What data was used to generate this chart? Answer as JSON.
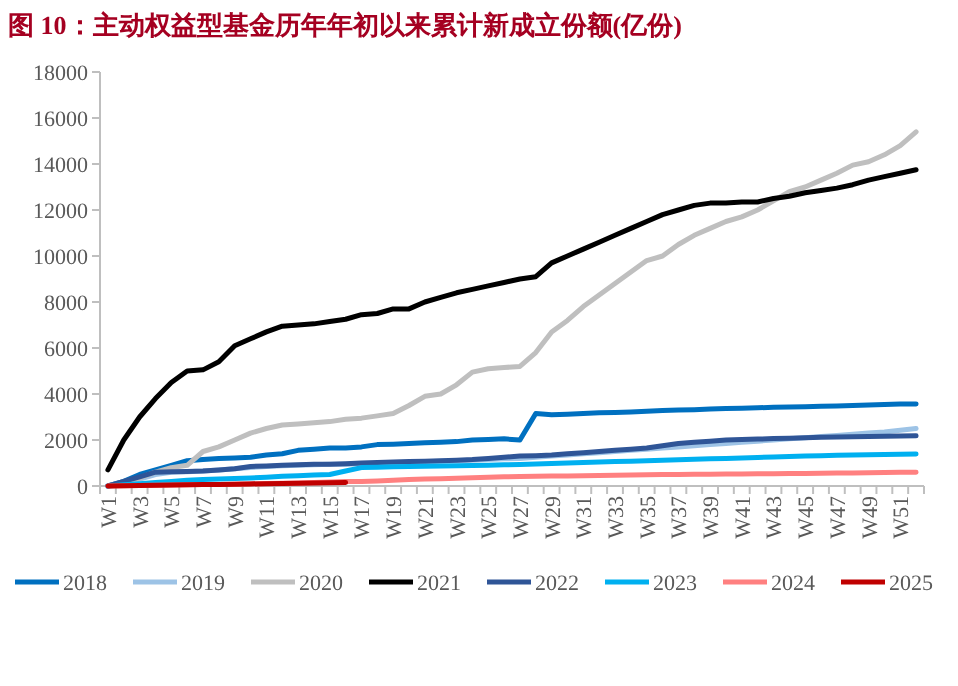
{
  "chart_data": {
    "type": "line",
    "title": "图 10：主动权益型基金历年年初以来累计新成立份额(亿份)",
    "categories": [
      "W1",
      null,
      "W3",
      null,
      "W5",
      null,
      "W7",
      null,
      "W9",
      null,
      "W11",
      null,
      "W13",
      null,
      "W15",
      null,
      "W17",
      null,
      "W19",
      null,
      "W21",
      null,
      "W23",
      null,
      "W25",
      null,
      "W27",
      null,
      "W29",
      null,
      "W31",
      null,
      "W33",
      null,
      "W35",
      null,
      "W37",
      null,
      "W39",
      null,
      "W41",
      null,
      "W43",
      null,
      "W45",
      null,
      "W47",
      null,
      "W49",
      null,
      "W51",
      null
    ],
    "ylim": [
      0,
      18000
    ],
    "yticks": [
      0,
      2000,
      4000,
      6000,
      8000,
      10000,
      12000,
      14000,
      16000,
      18000
    ],
    "legend": "bottom",
    "marker": "none",
    "line_style": "solid",
    "series": [
      {
        "name": "2018",
        "color": "#0070c0",
        "values": [
          0,
          200,
          500,
          700,
          900,
          1100,
          1150,
          1200,
          1220,
          1250,
          1350,
          1400,
          1550,
          1600,
          1650,
          1650,
          1700,
          1800,
          1820,
          1850,
          1880,
          1900,
          1930,
          2000,
          2020,
          2050,
          2000,
          3150,
          3100,
          3120,
          3150,
          3180,
          3200,
          3220,
          3250,
          3280,
          3300,
          3320,
          3350,
          3370,
          3380,
          3400,
          3420,
          3440,
          3450,
          3470,
          3480,
          3500,
          3520,
          3540,
          3560,
          3570
        ]
      },
      {
        "name": "2019",
        "color": "#9dc3e6",
        "values": [
          0,
          100,
          300,
          500,
          600,
          620,
          650,
          700,
          750,
          800,
          850,
          880,
          900,
          920,
          950,
          950,
          970,
          980,
          1000,
          1020,
          1050,
          1080,
          1100,
          1120,
          1150,
          1180,
          1200,
          1250,
          1300,
          1350,
          1400,
          1450,
          1500,
          1550,
          1600,
          1650,
          1700,
          1750,
          1800,
          1850,
          1900,
          1950,
          2000,
          2050,
          2100,
          2150,
          2200,
          2250,
          2300,
          2350,
          2420,
          2500
        ]
      },
      {
        "name": "2020",
        "color": "#bfbfbf",
        "values": [
          0,
          150,
          350,
          600,
          800,
          900,
          1500,
          1700,
          2000,
          2300,
          2500,
          2650,
          2700,
          2750,
          2800,
          2900,
          2950,
          3050,
          3150,
          3500,
          3900,
          4000,
          4400,
          4950,
          5100,
          5150,
          5200,
          5800,
          6700,
          7200,
          7800,
          8300,
          8800,
          9300,
          9800,
          10000,
          10500,
          10900,
          11200,
          11500,
          11700,
          12000,
          12400,
          12800,
          13000,
          13300,
          13600,
          13950,
          14100,
          14400,
          14800,
          15400
        ]
      },
      {
        "name": "2021",
        "color": "#000000",
        "values": [
          700,
          2000,
          3000,
          3800,
          4500,
          5000,
          5050,
          5400,
          6100,
          6400,
          6700,
          6950,
          7000,
          7050,
          7150,
          7250,
          7450,
          7500,
          7700,
          7700,
          8000,
          8200,
          8400,
          8550,
          8700,
          8850,
          9000,
          9100,
          9700,
          10000,
          10300,
          10600,
          10900,
          11200,
          11500,
          11800,
          12000,
          12200,
          12300,
          12300,
          12350,
          12350,
          12500,
          12600,
          12750,
          12850,
          12950,
          13100,
          13300,
          13450,
          13600,
          13750
        ]
      },
      {
        "name": "2022",
        "color": "#2f5597",
        "values": [
          0,
          200,
          400,
          600,
          620,
          630,
          650,
          700,
          750,
          850,
          870,
          900,
          920,
          950,
          950,
          970,
          1000,
          1020,
          1040,
          1060,
          1080,
          1100,
          1120,
          1150,
          1200,
          1250,
          1300,
          1320,
          1350,
          1400,
          1450,
          1500,
          1550,
          1600,
          1650,
          1750,
          1850,
          1900,
          1950,
          2000,
          2020,
          2040,
          2060,
          2080,
          2100,
          2120,
          2130,
          2140,
          2150,
          2160,
          2170,
          2180
        ]
      },
      {
        "name": "2023",
        "color": "#00b0f0",
        "values": [
          0,
          50,
          100,
          150,
          200,
          250,
          280,
          300,
          330,
          350,
          380,
          420,
          450,
          480,
          500,
          650,
          800,
          820,
          840,
          850,
          860,
          870,
          880,
          890,
          900,
          920,
          940,
          960,
          980,
          1000,
          1020,
          1040,
          1060,
          1080,
          1100,
          1120,
          1140,
          1160,
          1180,
          1200,
          1220,
          1240,
          1260,
          1280,
          1300,
          1320,
          1340,
          1350,
          1360,
          1370,
          1380,
          1390
        ]
      },
      {
        "name": "2024",
        "color": "#ff8080",
        "values": [
          0,
          10,
          20,
          30,
          40,
          50,
          60,
          70,
          80,
          100,
          110,
          120,
          130,
          150,
          170,
          190,
          200,
          220,
          250,
          280,
          300,
          320,
          340,
          360,
          380,
          400,
          410,
          420,
          430,
          440,
          450,
          460,
          470,
          480,
          490,
          500,
          505,
          510,
          515,
          520,
          525,
          530,
          535,
          540,
          545,
          550,
          560,
          570,
          580,
          590,
          595,
          600
        ]
      },
      {
        "name": "2025",
        "color": "#c00000",
        "values": [
          0,
          10,
          20,
          30,
          40,
          50,
          60,
          70,
          80,
          90,
          100,
          110,
          120,
          130,
          140,
          150,
          null,
          null,
          null,
          null,
          null,
          null,
          null,
          null,
          null,
          null,
          null,
          null,
          null,
          null,
          null,
          null,
          null,
          null,
          null,
          null,
          null,
          null,
          null,
          null,
          null,
          null,
          null,
          null,
          null,
          null,
          null,
          null,
          null,
          null,
          null,
          null
        ]
      }
    ]
  }
}
